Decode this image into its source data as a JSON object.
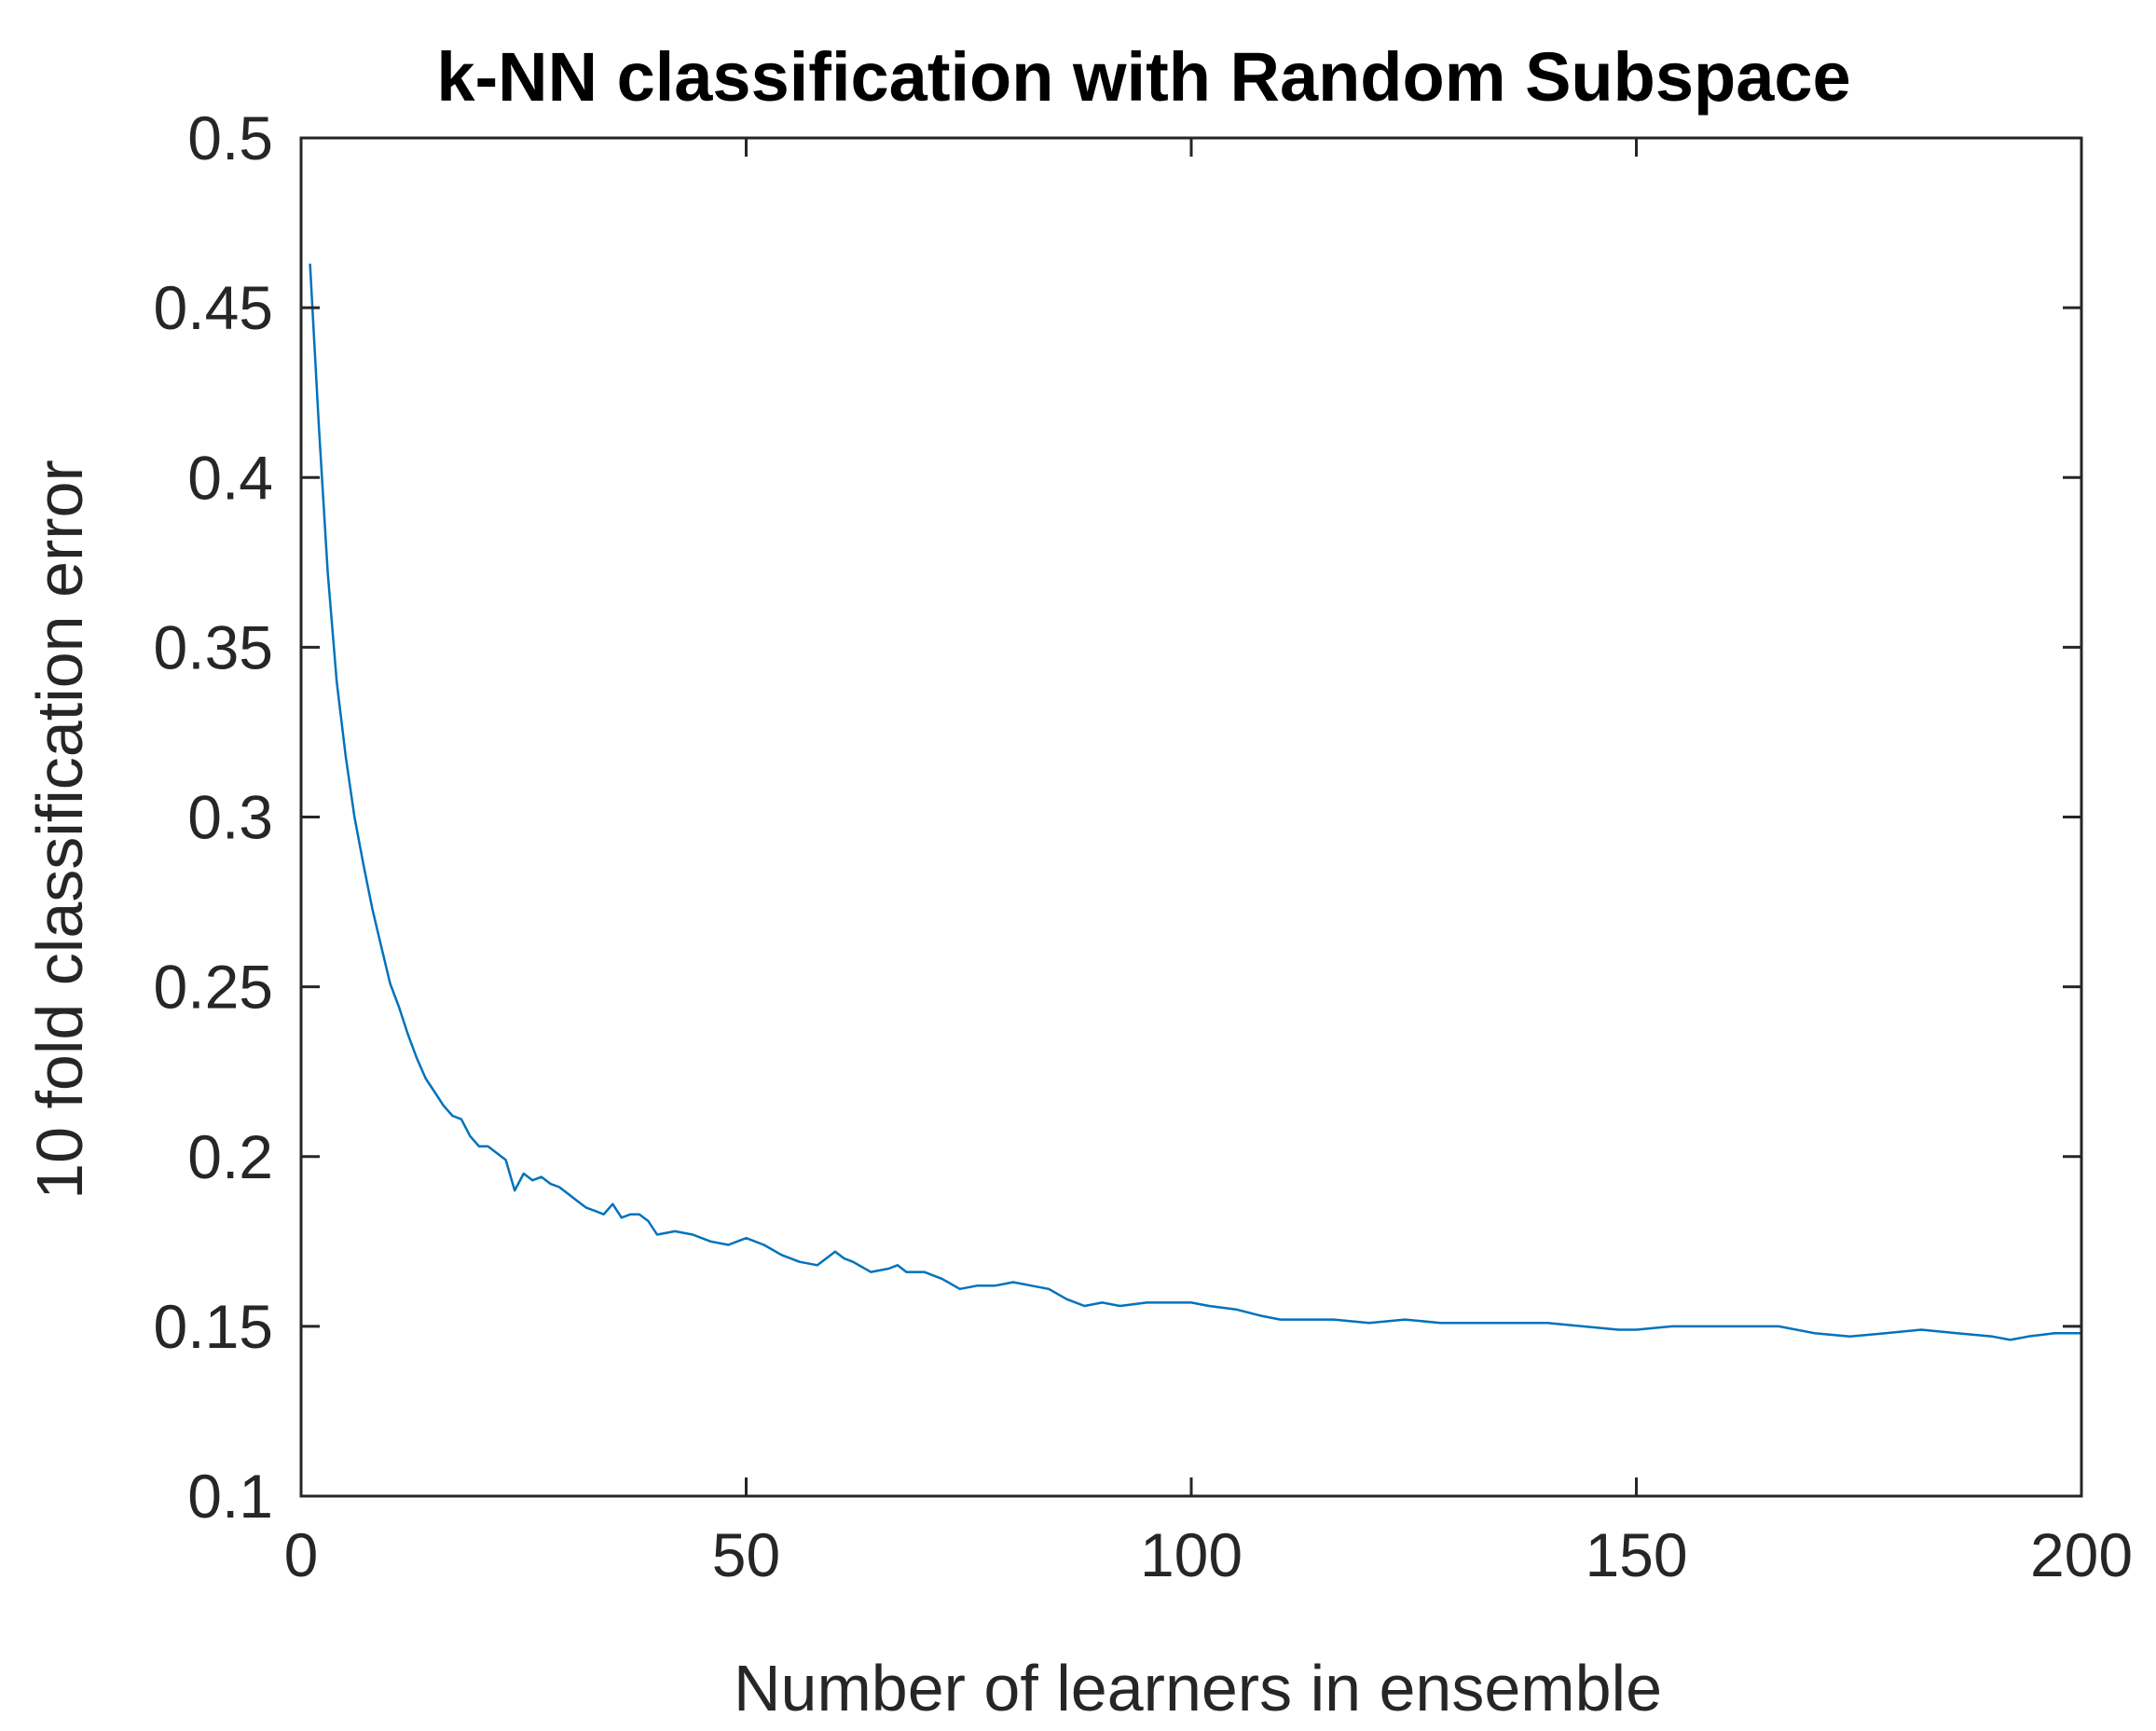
{
  "chart_data": {
    "type": "line",
    "title": "k-NN classification with Random Subspace",
    "xlabel": "Number of learners in ensemble",
    "ylabel": "10 fold classification error",
    "xlim": [
      0,
      200
    ],
    "ylim": [
      0.1,
      0.5
    ],
    "xticks": [
      0,
      50,
      100,
      150,
      200
    ],
    "xtick_labels": [
      "0",
      "50",
      "100",
      "150",
      "200"
    ],
    "yticks": [
      0.1,
      0.15,
      0.2,
      0.25,
      0.3,
      0.35,
      0.4,
      0.45,
      0.5
    ],
    "ytick_labels": [
      "0.1",
      "0.15",
      "0.2",
      "0.25",
      "0.3",
      "0.35",
      "0.4",
      "0.45",
      "0.5"
    ],
    "grid": false,
    "legend": "none",
    "line_color": "#0072BD",
    "series": [
      {
        "x": [
          1,
          2,
          3,
          4,
          5,
          6,
          7,
          8,
          9,
          10,
          11,
          12,
          13,
          14,
          15,
          16,
          17,
          18,
          19,
          20,
          21,
          22,
          23,
          24,
          25,
          26,
          27,
          28,
          29,
          30,
          31,
          32,
          33,
          34,
          35,
          36,
          37,
          38,
          39,
          40,
          42,
          44,
          46,
          48,
          50,
          52,
          54,
          56,
          58,
          60,
          61,
          62,
          64,
          66,
          67,
          68,
          70,
          72,
          74,
          76,
          78,
          80,
          82,
          84,
          86,
          88,
          90,
          92,
          95,
          98,
          100,
          102,
          105,
          108,
          110,
          113,
          116,
          120,
          124,
          128,
          132,
          136,
          140,
          144,
          148,
          150,
          154,
          158,
          162,
          166,
          170,
          174,
          178,
          182,
          186,
          190,
          192,
          194,
          197,
          200
        ],
        "values": [
          0.463,
          0.415,
          0.372,
          0.34,
          0.318,
          0.3,
          0.286,
          0.273,
          0.262,
          0.251,
          0.244,
          0.236,
          0.229,
          0.223,
          0.219,
          0.215,
          0.212,
          0.211,
          0.206,
          0.203,
          0.203,
          0.201,
          0.199,
          0.19,
          0.195,
          0.193,
          0.194,
          0.192,
          0.191,
          0.189,
          0.187,
          0.185,
          0.184,
          0.183,
          0.186,
          0.182,
          0.183,
          0.183,
          0.181,
          0.177,
          0.178,
          0.177,
          0.175,
          0.174,
          0.176,
          0.174,
          0.171,
          0.169,
          0.168,
          0.172,
          0.17,
          0.169,
          0.166,
          0.167,
          0.168,
          0.166,
          0.166,
          0.164,
          0.161,
          0.162,
          0.162,
          0.163,
          0.162,
          0.161,
          0.158,
          0.156,
          0.157,
          0.156,
          0.157,
          0.157,
          0.157,
          0.156,
          0.155,
          0.153,
          0.152,
          0.152,
          0.152,
          0.151,
          0.152,
          0.151,
          0.151,
          0.151,
          0.151,
          0.15,
          0.149,
          0.149,
          0.15,
          0.15,
          0.15,
          0.15,
          0.148,
          0.147,
          0.148,
          0.149,
          0.148,
          0.147,
          0.146,
          0.147,
          0.148,
          0.148
        ]
      }
    ]
  }
}
